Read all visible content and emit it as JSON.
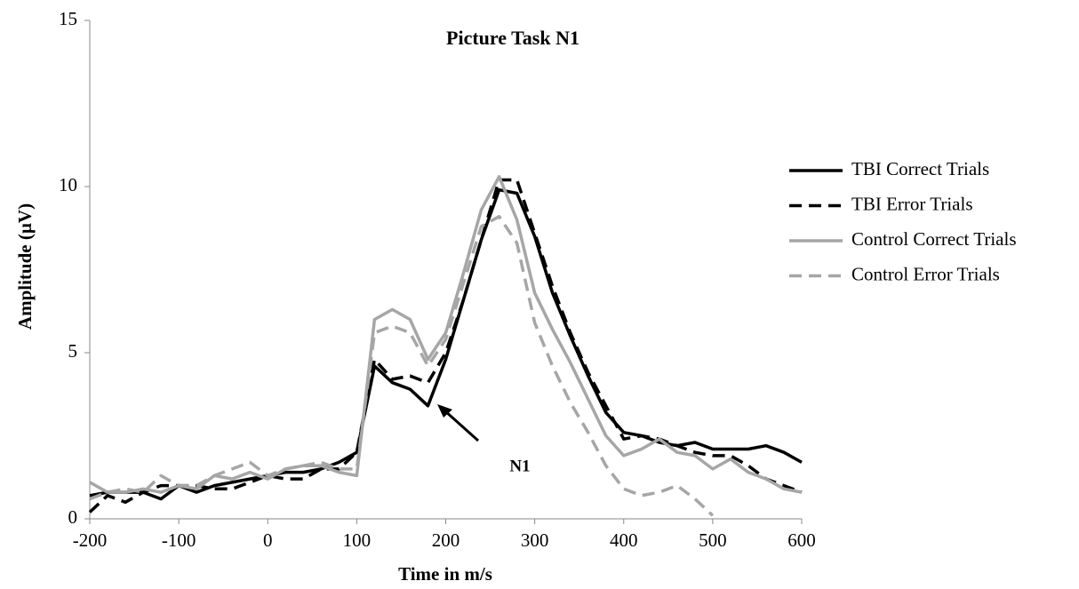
{
  "chart_data": {
    "type": "line",
    "title": "Picture Task N1",
    "x_label": "Time in m/s",
    "y_label": "Amplitude (µV)",
    "annotation": "N1",
    "x": [
      -200,
      -180,
      -160,
      -140,
      -120,
      -100,
      -80,
      -60,
      -40,
      -20,
      0,
      20,
      40,
      60,
      80,
      100,
      120,
      140,
      160,
      180,
      200,
      220,
      240,
      260,
      280,
      300,
      320,
      340,
      360,
      380,
      400,
      420,
      440,
      460,
      480,
      500,
      520,
      540,
      560,
      580,
      600
    ],
    "series": [
      {
        "name": "TBI Correct Trials",
        "color": "#000000",
        "dashed": false,
        "values": [
          0.7,
          0.8,
          0.8,
          0.8,
          0.6,
          1.0,
          0.8,
          1.0,
          1.1,
          1.2,
          1.3,
          1.4,
          1.4,
          1.5,
          1.7,
          2.0,
          4.6,
          4.1,
          3.9,
          3.4,
          4.8,
          6.6,
          8.4,
          9.9,
          9.8,
          8.5,
          6.8,
          5.5,
          4.3,
          3.2,
          2.6,
          2.5,
          2.3,
          2.2,
          2.3,
          2.1,
          2.1,
          2.1,
          2.2,
          2.0,
          1.7
        ]
      },
      {
        "name": "TBI Error Trials",
        "color": "#000000",
        "dashed": true,
        "values": [
          0.2,
          0.7,
          0.5,
          0.8,
          1.0,
          1.0,
          1.0,
          0.9,
          0.9,
          1.1,
          1.3,
          1.2,
          1.2,
          1.5,
          1.5,
          2.0,
          4.8,
          4.2,
          4.3,
          4.1,
          5.0,
          6.6,
          8.4,
          10.2,
          10.2,
          8.6,
          7.0,
          5.6,
          4.4,
          3.4,
          2.4,
          2.5,
          2.4,
          2.2,
          2.0,
          1.9,
          1.9,
          1.6,
          1.2,
          1.0,
          0.8
        ]
      },
      {
        "name": "Control Correct Trials",
        "color": "#a6a6a6",
        "dashed": false,
        "values": [
          1.1,
          0.8,
          0.8,
          0.9,
          0.8,
          1.0,
          0.9,
          1.3,
          1.2,
          1.4,
          1.2,
          1.5,
          1.6,
          1.6,
          1.4,
          1.3,
          6.0,
          6.3,
          6.0,
          4.8,
          5.6,
          7.4,
          9.3,
          10.3,
          9.0,
          6.8,
          5.7,
          4.7,
          3.6,
          2.5,
          1.9,
          2.1,
          2.4,
          2.0,
          1.9,
          1.5,
          1.8,
          1.4,
          1.2,
          0.9,
          0.8
        ]
      },
      {
        "name": "Control Error Trials",
        "color": "#a6a6a6",
        "dashed": true,
        "values": [
          0.6,
          0.8,
          0.9,
          0.8,
          1.3,
          1.0,
          1.0,
          1.3,
          1.5,
          1.7,
          1.3,
          1.5,
          1.6,
          1.7,
          1.5,
          1.5,
          5.6,
          5.8,
          5.6,
          4.6,
          5.4,
          7.1,
          8.8,
          9.1,
          8.3,
          5.9,
          4.6,
          3.5,
          2.6,
          1.6,
          0.9,
          0.7,
          0.8,
          1.0,
          0.6,
          0.1,
          null,
          null,
          null,
          null,
          null
        ]
      }
    ],
    "xlim": [
      -200,
      600
    ],
    "xticks": [
      -200,
      -100,
      0,
      100,
      200,
      300,
      400,
      500,
      600
    ],
    "ylim": [
      0,
      15
    ],
    "yticks": [
      0,
      5,
      10,
      15
    ],
    "legend_position": "right"
  }
}
